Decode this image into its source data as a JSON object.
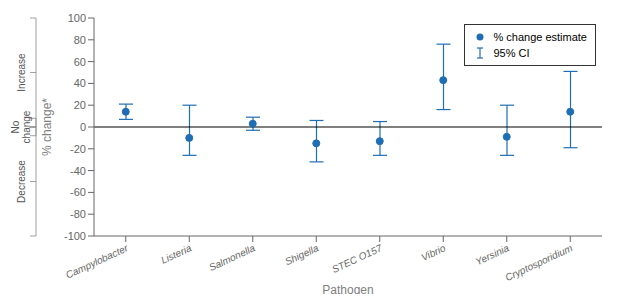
{
  "chart_data": {
    "type": "scatter",
    "xlabel": "Pathogen",
    "ylabel": "% change*",
    "categories": [
      "Campylobacter",
      "Listeria",
      "Salmonella",
      "Shigella",
      "STEC O157",
      "Vibrio",
      "Yersinia",
      "Cryptosporidium"
    ],
    "series": [
      {
        "name": "% change estimate",
        "color": "#1f6eb5",
        "values": [
          14,
          -10,
          3,
          -15,
          -13,
          43,
          -9,
          14
        ],
        "ci_lower": [
          7,
          -26,
          -3,
          -32,
          -26,
          16,
          -26,
          -19
        ],
        "ci_upper": [
          21,
          20,
          9,
          6,
          5,
          76,
          20,
          51
        ]
      }
    ],
    "error_bar_label": "95% CI",
    "ylim": [
      -100,
      100
    ],
    "yticks": [
      -100,
      -80,
      -60,
      -40,
      -20,
      0,
      20,
      40,
      60,
      80,
      100
    ],
    "grid": false,
    "legend": "upper right",
    "reference_lines": [
      {
        "y": 0,
        "color": "#000000"
      }
    ],
    "annotations": [
      {
        "text": "Increase",
        "y_from": 0,
        "y_to": 100
      },
      {
        "text": "No\nchange",
        "y_from": -8,
        "y_to": 8
      },
      {
        "text": "Decrease",
        "y_from": -100,
        "y_to": 0
      }
    ]
  }
}
